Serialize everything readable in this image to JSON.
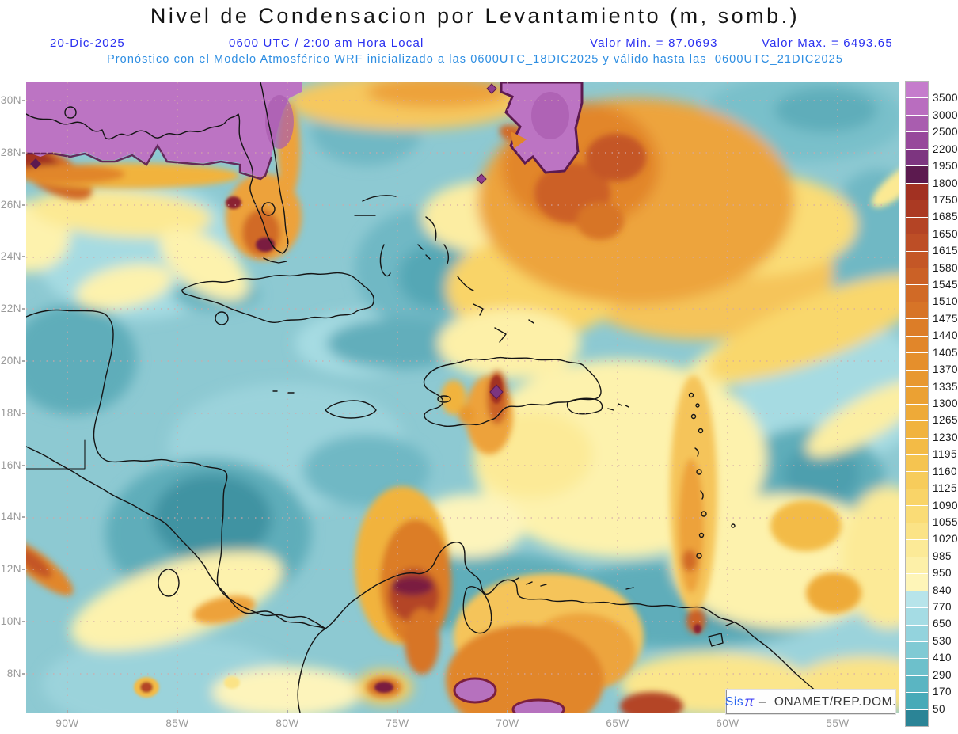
{
  "header": {
    "title": "Nivel de Condensacion por Levantamiento (m, somb.)",
    "date": "20-Dic-2025",
    "time": "0600 UTC / 2:00 am Hora Local",
    "min_label": "Valor Min. = 87.0693",
    "max_label": "Valor Max. = 6493.65",
    "forecast_line": "Pronóstico con el Modelo Atmosférico WRF inicializado a las 0600UTC_18DIC2025 y válido hasta las  0600UTC_21DIC2025"
  },
  "colors": {
    "header_blue": "#2a30f0",
    "forecast_blue": "#2e8ee2",
    "axis_gray": "#9a9a9a",
    "sea_base": "#8dc9d2",
    "purple_mass": "#bc74c3"
  },
  "axes": {
    "lat": [
      "30N",
      "28N",
      "26N",
      "24N",
      "22N",
      "20N",
      "18N",
      "16N",
      "14N",
      "12N",
      "10N",
      "8N"
    ],
    "lon": [
      "90W",
      "85W",
      "80W",
      "75W",
      "70W",
      "65W",
      "60W",
      "55W"
    ]
  },
  "colorbar": {
    "units": "m",
    "labels": [
      "3500",
      "3000",
      "2500",
      "2200",
      "1950",
      "1800",
      "1750",
      "1685",
      "1650",
      "1615",
      "1580",
      "1545",
      "1510",
      "1475",
      "1440",
      "1405",
      "1370",
      "1335",
      "1300",
      "1265",
      "1230",
      "1195",
      "1160",
      "1125",
      "1090",
      "1055",
      "1020",
      "985",
      "950",
      "840",
      "770",
      "650",
      "530",
      "410",
      "290",
      "170",
      "50"
    ],
    "colors": [
      "#c57ccc",
      "#b96dbf",
      "#a95daf",
      "#97489b",
      "#7d3580",
      "#5c1a4f",
      "#a23122",
      "#ab3a23",
      "#b44425",
      "#bd4e26",
      "#c45726",
      "#cb6126",
      "#d16a26",
      "#d77427",
      "#dc7d28",
      "#e1862a",
      "#e58f2c",
      "#e8982f",
      "#eba133",
      "#eeaa38",
      "#f1b33e",
      "#f3bb46",
      "#f5c450",
      "#f7cc5b",
      "#f9d468",
      "#fadc76",
      "#fbe386",
      "#fcea97",
      "#fdf0a8",
      "#fef5b8",
      "#b7e4ea",
      "#a5dce4",
      "#93d3dd",
      "#80cad4",
      "#6dc0cb",
      "#5ab5c2",
      "#47aab8",
      "#2b8496"
    ]
  },
  "attribution": {
    "prefix": "Sis",
    "pi": "π",
    "suffix": " –  ONAMET/REP.DOM."
  }
}
